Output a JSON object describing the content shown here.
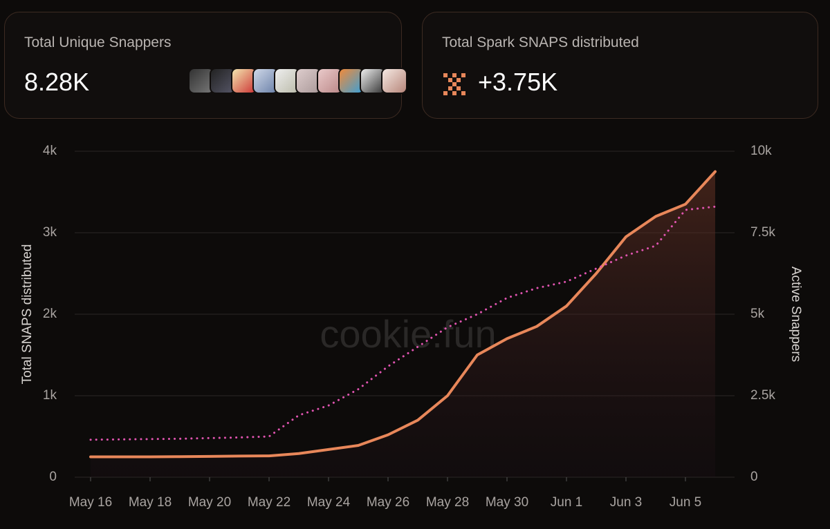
{
  "cards": [
    {
      "label": "Total Unique Snappers",
      "value": "8.28K"
    },
    {
      "label": "Total Spark SNAPS distributed",
      "value": "+3.75K"
    }
  ],
  "watermark": "cookie.fun",
  "chart_data": {
    "type": "line",
    "y_label": "Total SNAPS distributed",
    "y2_label": "Active Snappers",
    "categories": [
      "May 16",
      null,
      "May 18",
      null,
      "May 20",
      null,
      "May 22",
      null,
      "May 24",
      null,
      "May 26",
      null,
      "May 28",
      null,
      "May 30",
      null,
      "Jun 1",
      null,
      "Jun 3",
      null,
      "Jun 5",
      null
    ],
    "series": [
      {
        "name": "Total SNAPS distributed",
        "color": "#e8875a",
        "values": [
          250,
          250,
          250,
          252,
          255,
          260,
          262,
          290,
          340,
          390,
          520,
          700,
          1000,
          1500,
          1700,
          1850,
          2100,
          2500,
          2950,
          3200,
          3350,
          3750
        ]
      },
      {
        "name": "Active Snappers",
        "color": "#e054b0",
        "axis": "y2",
        "values": [
          1150,
          1160,
          1170,
          1180,
          1200,
          1220,
          1250,
          1900,
          2200,
          2700,
          3400,
          4000,
          4600,
          5000,
          5500,
          5800,
          6000,
          6400,
          6800,
          7100,
          8200,
          8300
        ]
      }
    ],
    "ylim": [
      0,
      4000
    ],
    "yticks": [
      0,
      {
        "value": 1000,
        "label": "1k"
      },
      {
        "value": 2000,
        "label": "2k"
      },
      {
        "value": 3000,
        "label": "3k"
      },
      {
        "value": 4000,
        "label": "4k"
      }
    ],
    "y2lim": [
      0,
      10000
    ],
    "y2ticks": [
      0,
      {
        "value": 2500,
        "label": "2.5k"
      },
      {
        "value": 5000,
        "label": "5k"
      },
      {
        "value": 7500,
        "label": "7.5k"
      },
      {
        "value": 10000,
        "label": "10k"
      }
    ],
    "grid": true
  }
}
